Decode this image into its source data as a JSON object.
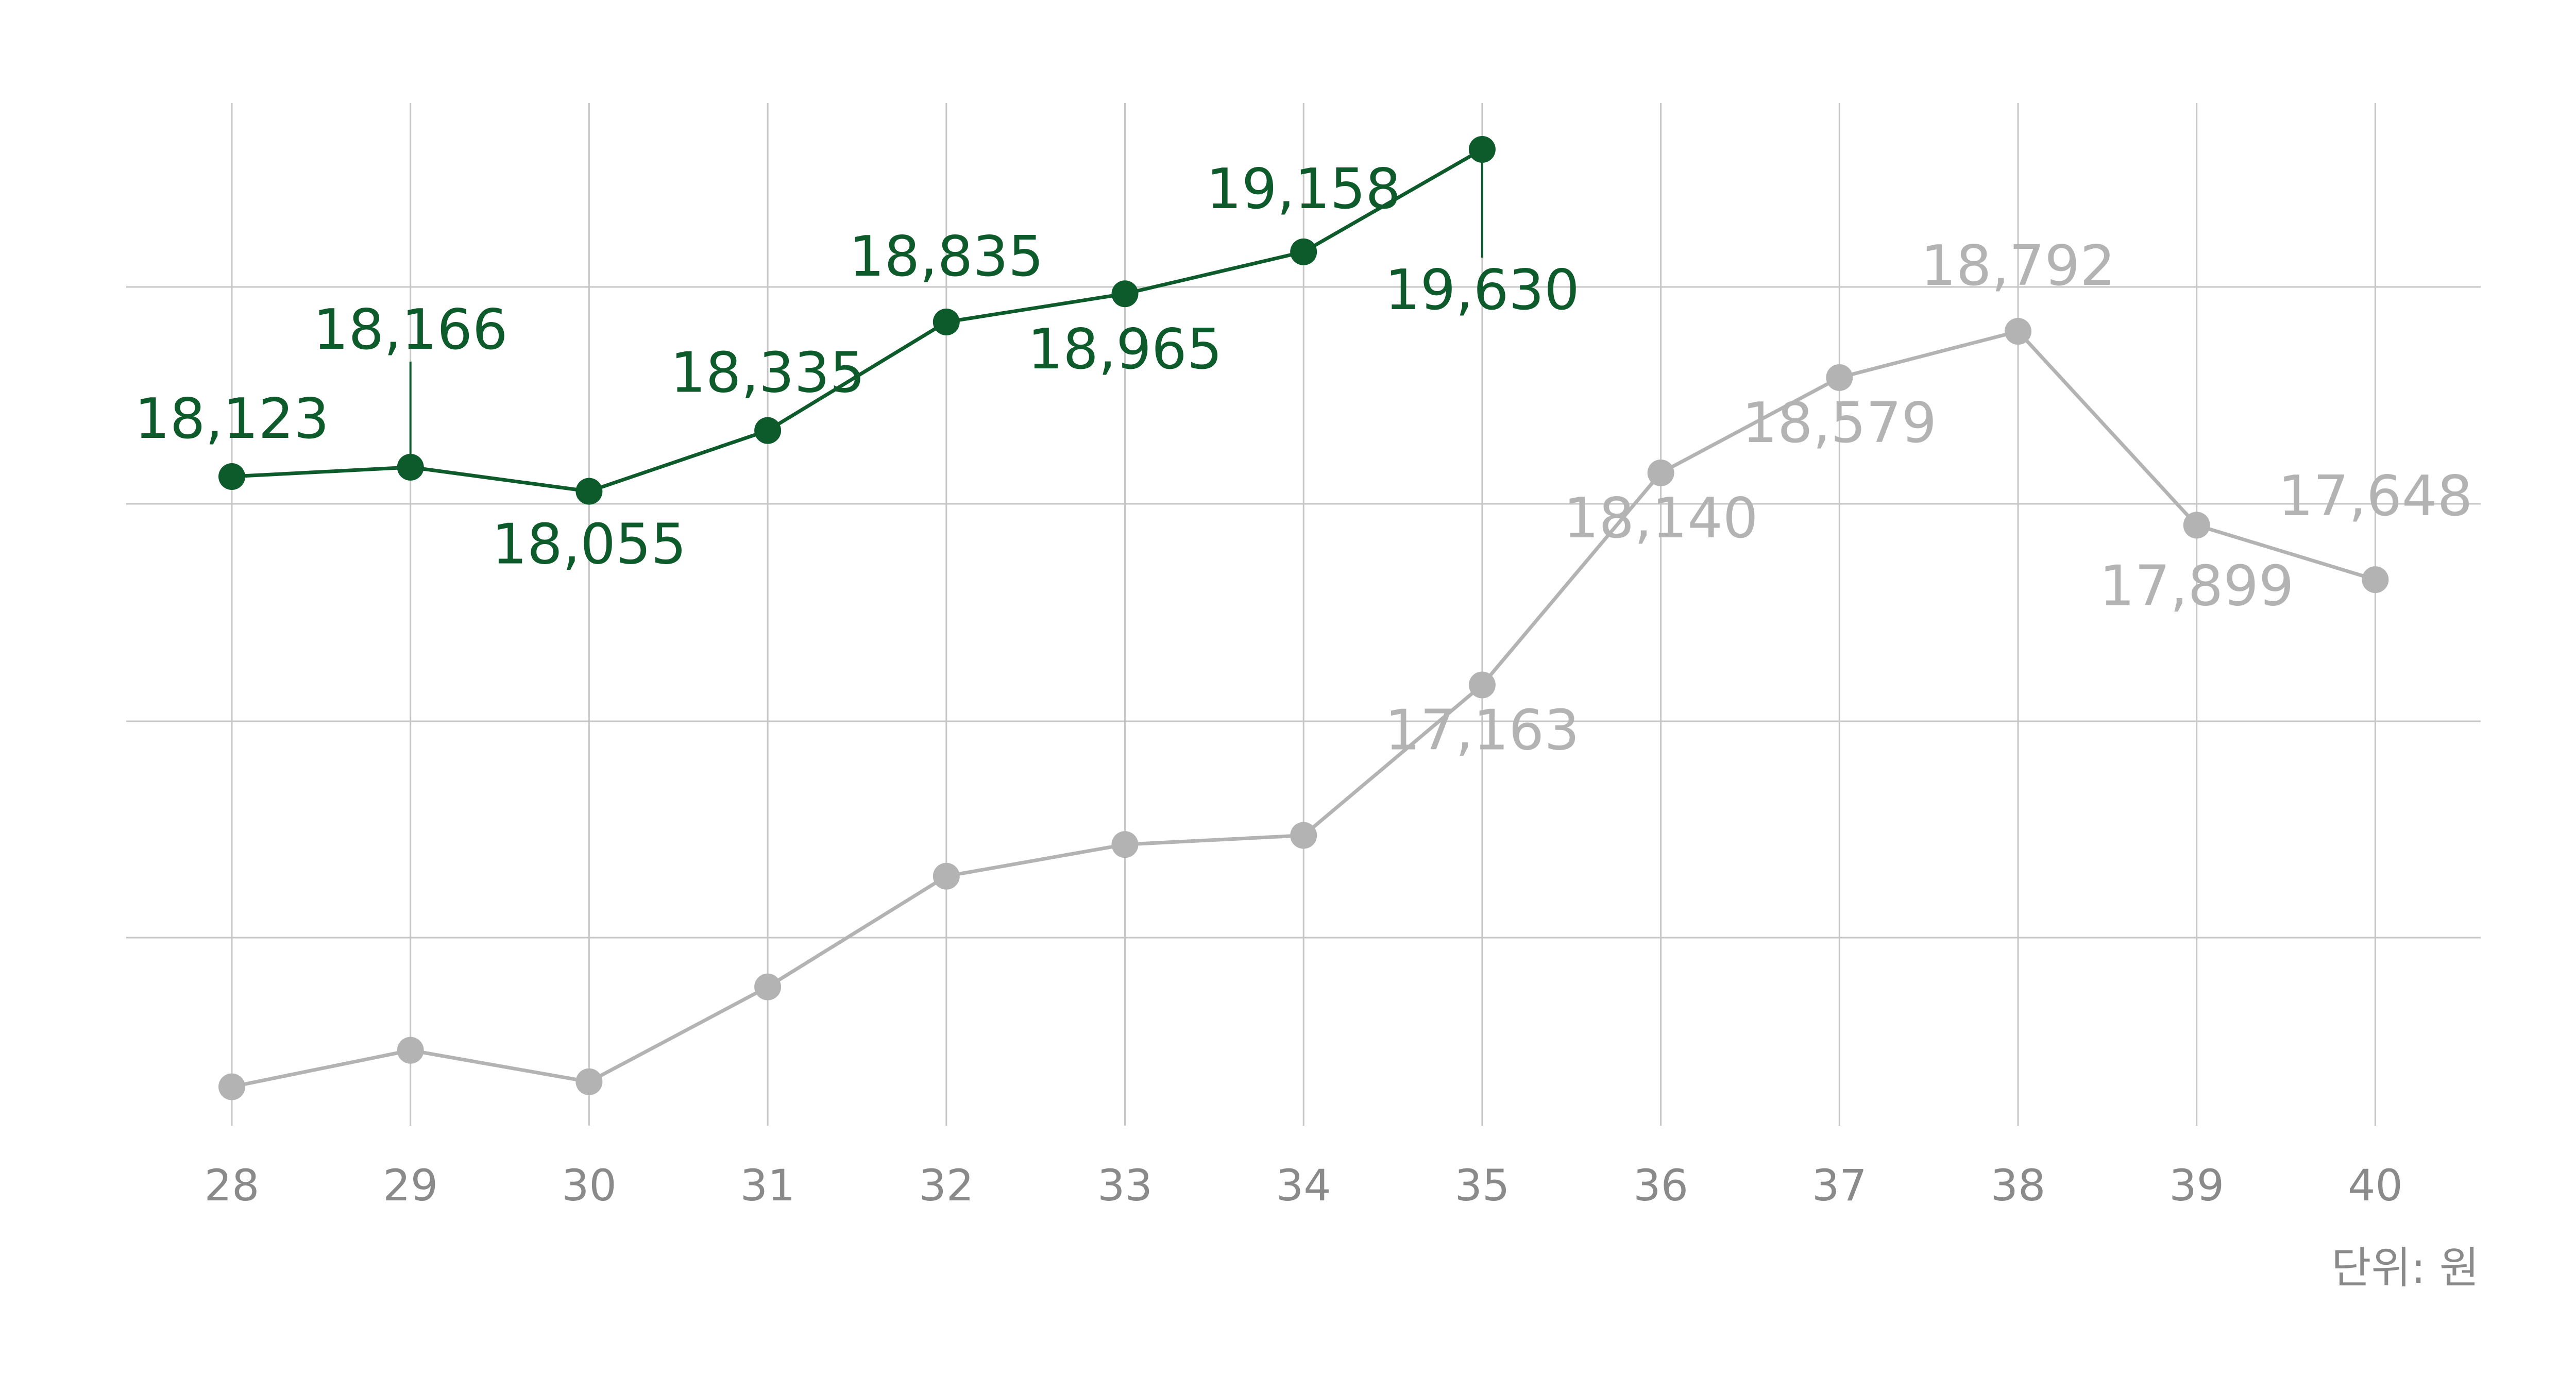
{
  "chart_data": {
    "type": "line",
    "x": [
      "28",
      "29",
      "30",
      "31",
      "32",
      "33",
      "34",
      "35",
      "36",
      "37",
      "38",
      "39",
      "40"
    ],
    "unit_label": "단위: 원",
    "grid": true,
    "series": [
      {
        "color": "#0d5a2a",
        "values": [
          18123,
          18166,
          18055,
          18335,
          18835,
          18965,
          19158,
          19630,
          null,
          null,
          null,
          null,
          null
        ],
        "labels": [
          "18,123",
          "18,166",
          "18,055",
          "18,335",
          "18,835",
          "18,965",
          "19,158",
          "19,630",
          null,
          null,
          null,
          null,
          null
        ]
      },
      {
        "color": "#b3b3b3",
        "values": [
          15312,
          15480,
          15335,
          15772,
          16282,
          16428,
          16470,
          17163,
          18140,
          18579,
          18792,
          17899,
          17648
        ],
        "labels": [
          null,
          null,
          null,
          null,
          null,
          null,
          null,
          "17,163",
          "18,140",
          "18,579",
          "18,792",
          "17,899",
          "17,648"
        ]
      }
    ],
    "tick_color": "#8a8a8a",
    "grid_color": "#c6c6c6"
  }
}
